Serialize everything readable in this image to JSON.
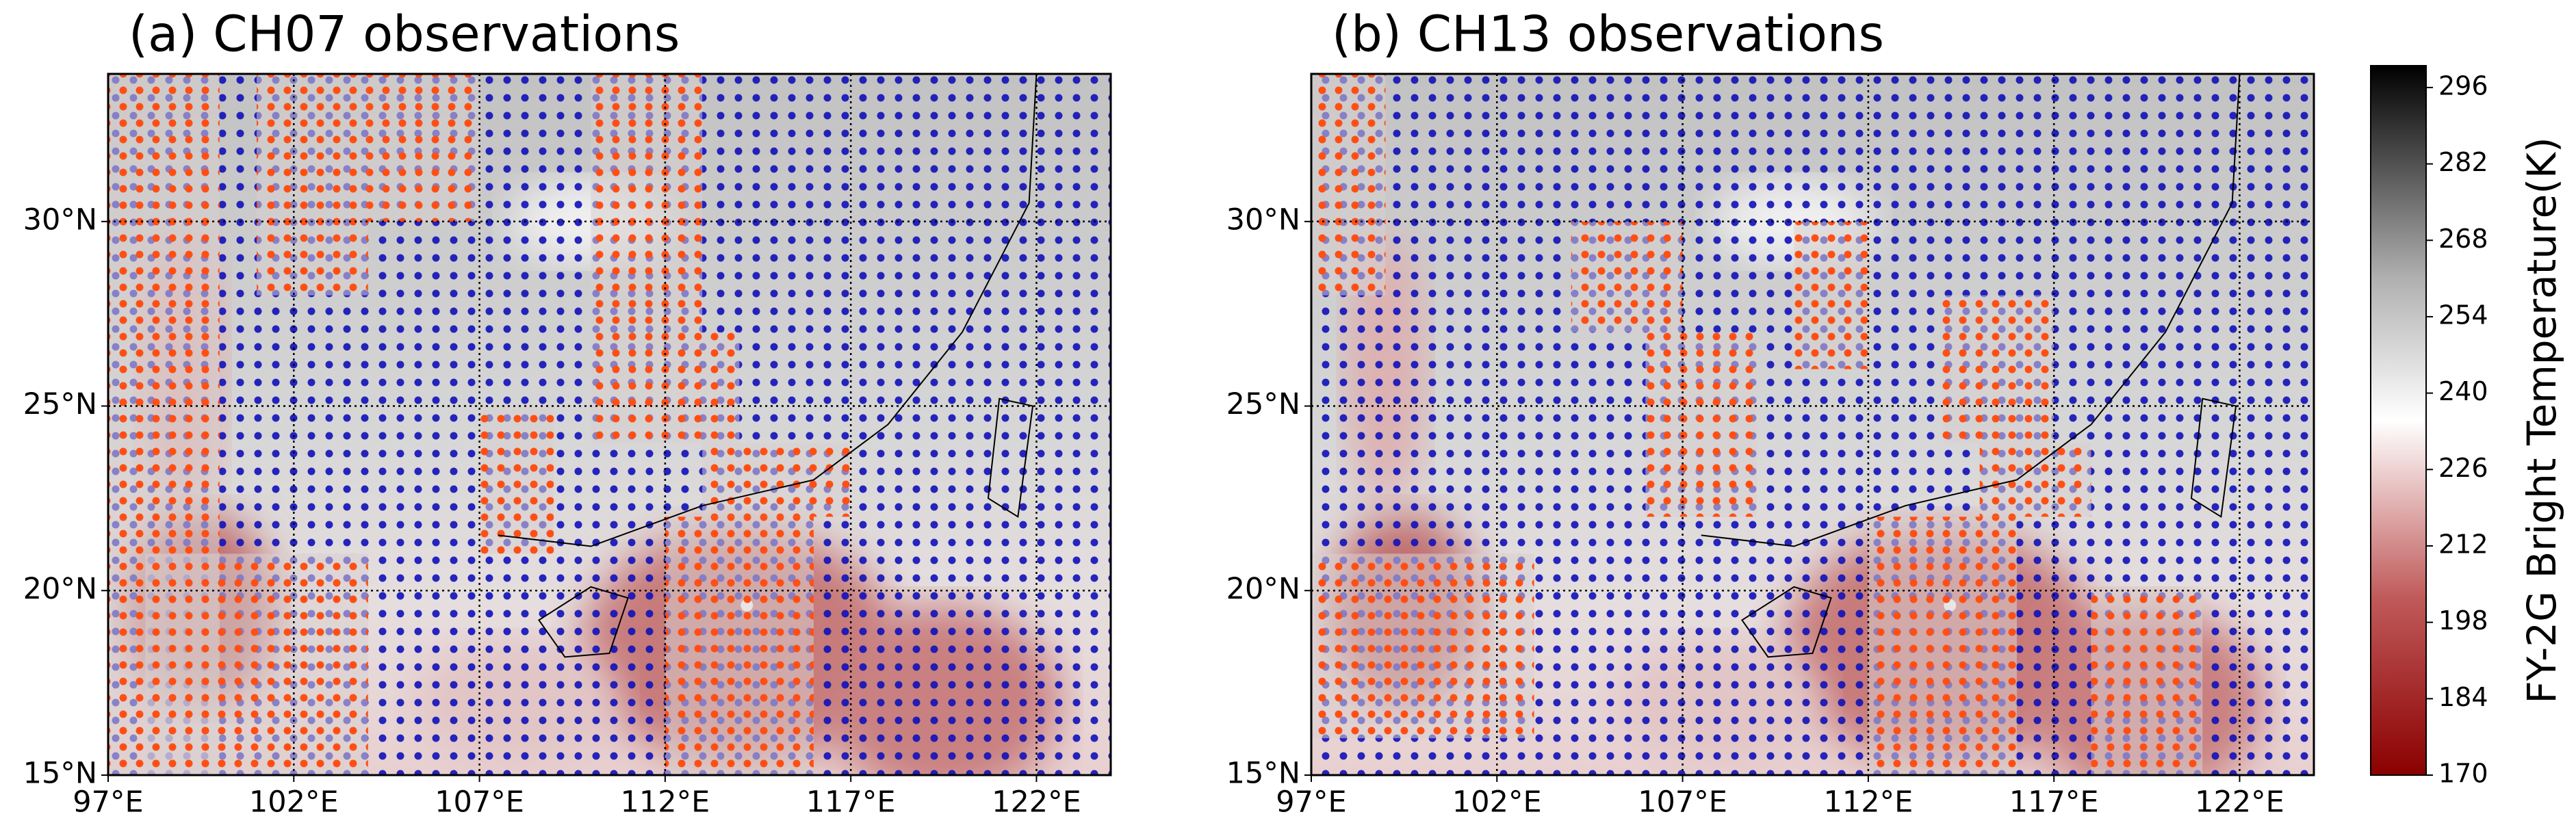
{
  "panels": [
    {
      "title": "(a) CH07 observations"
    },
    {
      "title": "(b) CH13 observations"
    }
  ],
  "map": {
    "xlim": [
      97,
      124
    ],
    "ylim": [
      15,
      34
    ],
    "xticks": [
      {
        "value": 97,
        "label": "97°E"
      },
      {
        "value": 102,
        "label": "102°E"
      },
      {
        "value": 107,
        "label": "107°E"
      },
      {
        "value": 112,
        "label": "112°E"
      },
      {
        "value": 117,
        "label": "117°E"
      },
      {
        "value": 122,
        "label": "122°E"
      }
    ],
    "yticks": [
      {
        "value": 15,
        "label": "15°N"
      },
      {
        "value": 20,
        "label": "20°N"
      },
      {
        "value": 25,
        "label": "25°N"
      },
      {
        "value": 30,
        "label": "30°N"
      }
    ]
  },
  "colorbar": {
    "label": "FY-2G Bright Temperature(K)",
    "lim": [
      170,
      300
    ],
    "ticks": [
      170,
      184,
      198,
      212,
      226,
      240,
      254,
      268,
      282,
      296
    ]
  }
}
